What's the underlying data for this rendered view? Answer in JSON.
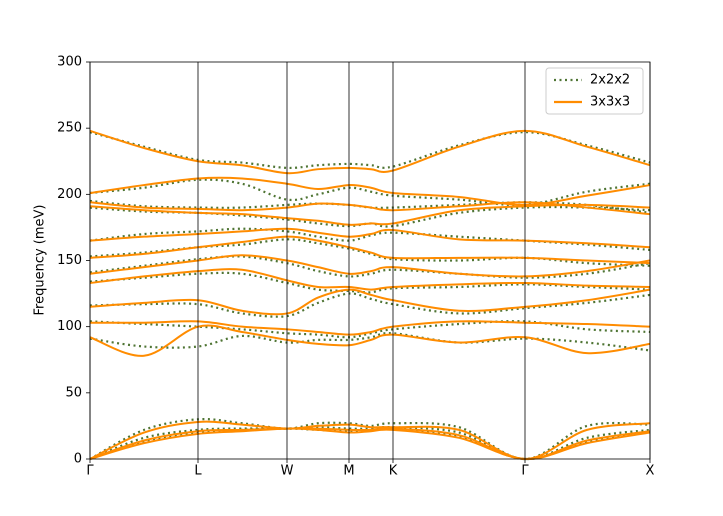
{
  "chart_data": {
    "type": "line",
    "ylabel": "Frequency (meV)",
    "xlim": [
      0,
      5.6
    ],
    "xticks": [
      {
        "value": 0,
        "label": "Γ"
      },
      {
        "value": 1.08,
        "label": "L"
      },
      {
        "value": 1.97,
        "label": "W"
      },
      {
        "value": 2.59,
        "label": "M"
      },
      {
        "value": 3.03,
        "label": "K"
      },
      {
        "value": 4.35,
        "label": "Γ"
      },
      {
        "value": 5.6,
        "label": "X"
      }
    ],
    "ylim": [
      0,
      300
    ],
    "yticks": [
      0,
      50,
      100,
      150,
      200,
      250,
      300
    ],
    "legend": "upper right",
    "x": [
      0,
      0.54,
      1.08,
      1.52,
      1.97,
      2.28,
      2.59,
      2.81,
      3.03,
      3.69,
      4.35,
      4.97,
      5.6
    ],
    "series": [
      {
        "name": "2x2x2",
        "color": "#4f7534",
        "style": "dotted",
        "bands": [
          [
            0,
            13,
            20,
            22,
            23,
            22,
            21,
            22,
            23,
            17,
            0,
            13,
            21
          ],
          [
            0,
            16,
            22,
            23,
            23,
            24,
            23,
            23,
            24,
            20,
            0,
            16,
            22
          ],
          [
            0,
            22,
            30,
            27,
            23,
            27,
            27,
            25,
            27,
            24,
            0,
            25,
            26
          ],
          [
            247,
            236,
            226,
            224,
            220,
            222,
            223,
            222,
            221,
            237,
            247,
            237,
            224
          ],
          [
            201,
            205,
            211,
            208,
            196,
            200,
            205,
            202,
            199,
            196,
            192,
            202,
            208
          ],
          [
            195,
            191,
            190,
            190,
            192,
            193,
            192,
            190,
            190,
            192,
            194,
            192,
            186
          ],
          [
            190,
            187,
            186,
            184,
            181,
            178,
            176,
            178,
            176,
            186,
            190,
            190,
            188
          ],
          [
            165,
            170,
            172,
            174,
            172,
            168,
            165,
            169,
            171,
            168,
            165,
            162,
            158
          ],
          [
            153,
            156,
            160,
            162,
            166,
            163,
            159,
            155,
            151,
            150,
            152,
            148,
            146
          ],
          [
            141,
            146,
            151,
            153,
            148,
            142,
            138,
            140,
            143,
            140,
            137,
            140,
            148
          ],
          [
            134,
            137,
            140,
            140,
            133,
            128,
            127,
            126,
            129,
            130,
            132,
            130,
            128
          ],
          [
            116,
            117,
            117,
            110,
            108,
            118,
            125,
            121,
            117,
            110,
            114,
            118,
            124
          ],
          [
            104,
            102,
            100,
            98,
            95,
            94,
            92,
            95,
            98,
            102,
            104,
            98,
            96
          ],
          [
            91,
            85,
            85,
            93,
            88,
            90,
            90,
            92,
            95,
            88,
            91,
            88,
            82
          ]
        ]
      },
      {
        "name": "3x3x3",
        "color": "#ff8c00",
        "style": "solid",
        "bands": [
          [
            0,
            12,
            19,
            21,
            23,
            22,
            20,
            21,
            22,
            16,
            0,
            12,
            20
          ],
          [
            0,
            14,
            21,
            22,
            23,
            23,
            22,
            22,
            23,
            18,
            0,
            14,
            21
          ],
          [
            0,
            20,
            28,
            26,
            23,
            25,
            26,
            24,
            24,
            22,
            0,
            22,
            27
          ],
          [
            248,
            235,
            225,
            222,
            216,
            219,
            220,
            219,
            218,
            236,
            248,
            236,
            222
          ],
          [
            201,
            207,
            212,
            212,
            208,
            204,
            207,
            205,
            201,
            198,
            192,
            199,
            207
          ],
          [
            194,
            190,
            189,
            188,
            190,
            193,
            192,
            190,
            188,
            191,
            194,
            190,
            185
          ],
          [
            191,
            188,
            186,
            185,
            182,
            180,
            177,
            178,
            178,
            188,
            191,
            192,
            190
          ],
          [
            165,
            168,
            170,
            172,
            174,
            171,
            168,
            170,
            173,
            166,
            165,
            163,
            160
          ],
          [
            152,
            155,
            160,
            164,
            168,
            165,
            160,
            156,
            152,
            152,
            152,
            150,
            148
          ],
          [
            140,
            145,
            150,
            154,
            150,
            145,
            140,
            142,
            145,
            140,
            138,
            142,
            150
          ],
          [
            133,
            138,
            142,
            143,
            135,
            130,
            130,
            128,
            130,
            132,
            133,
            131,
            130
          ],
          [
            115,
            118,
            120,
            112,
            110,
            122,
            128,
            124,
            120,
            112,
            115,
            120,
            128
          ],
          [
            103,
            103,
            104,
            100,
            98,
            96,
            94,
            96,
            100,
            104,
            103,
            102,
            100
          ],
          [
            92,
            78,
            100,
            96,
            90,
            87,
            86,
            90,
            94,
            88,
            92,
            80,
            87
          ]
        ]
      }
    ]
  }
}
